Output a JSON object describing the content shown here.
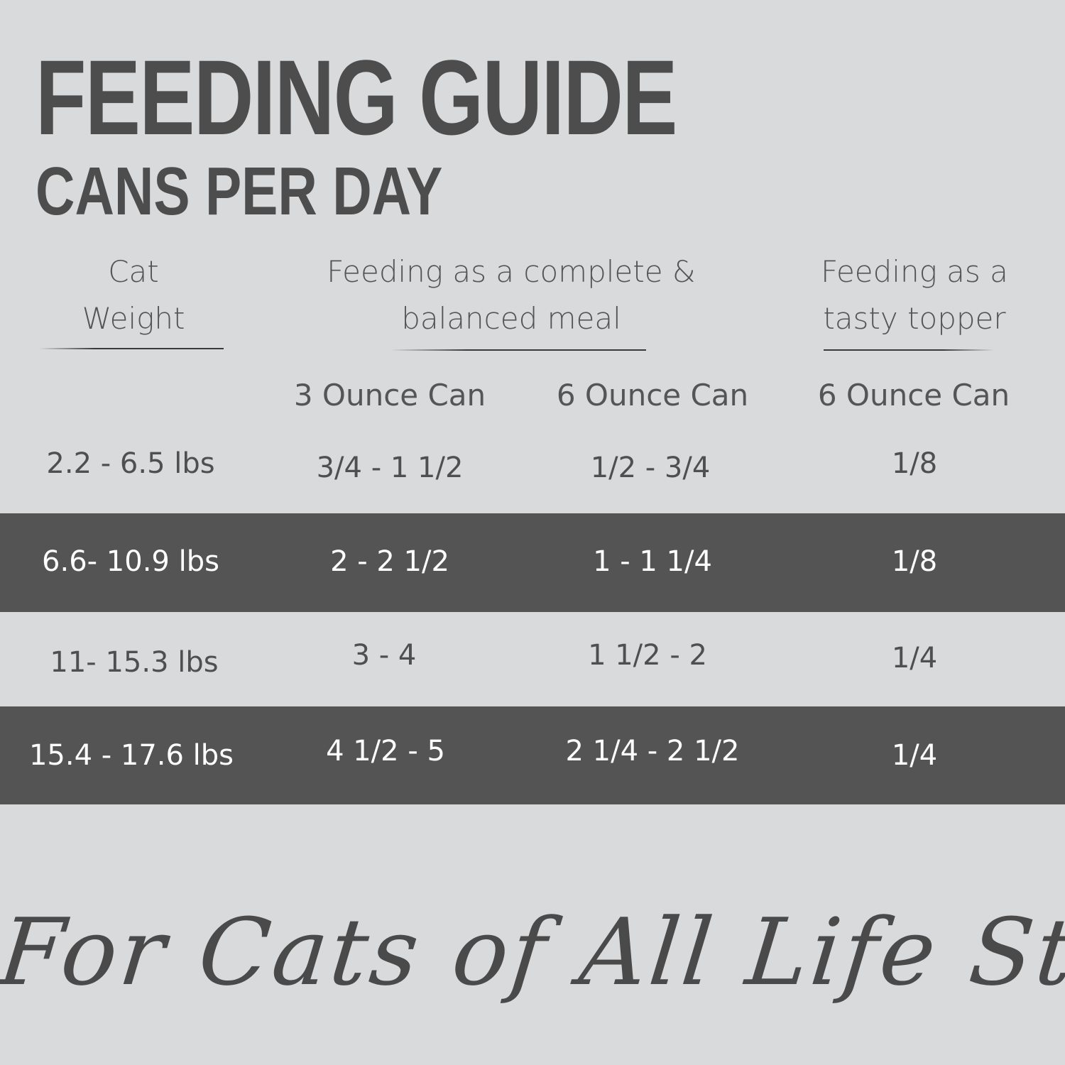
{
  "title": "FEEDING GUIDE",
  "subtitle": "CANS PER DAY",
  "headers": {
    "weight": [
      "Cat",
      "Weight"
    ],
    "complete": [
      "Feeding as a complete &",
      "balanced meal"
    ],
    "topper": [
      "Feeding as a",
      "tasty topper"
    ]
  },
  "subheaders": [
    "3 Ounce Can",
    "6 Ounce Can",
    "6 Ounce Can"
  ],
  "rows": [
    {
      "weight": "2.2 - 6.5 lbs",
      "oz3": "3/4 - 1 1/2",
      "oz6": "1/2 - 3/4",
      "topper": "1/8",
      "highlight": false
    },
    {
      "weight": "6.6- 10.9 lbs",
      "oz3": "2 - 2 1/2",
      "oz6": "1 - 1 1/4",
      "topper": "1/8",
      "highlight": true
    },
    {
      "weight": "11- 15.3 lbs",
      "oz3": "3 - 4",
      "oz6": "1 1/2 - 2",
      "topper": "1/4",
      "highlight": false
    },
    {
      "weight": "15.4 - 17.6 lbs",
      "oz3": "4 1/2 - 5",
      "oz6": "2 1/4 - 2 1/2",
      "topper": "1/4",
      "highlight": true
    }
  ],
  "tagline": "For Cats of All Life Stages",
  "colors": {
    "background": "#d9dadc",
    "highlight_row": "#545454",
    "text": "#4f4f4f"
  }
}
